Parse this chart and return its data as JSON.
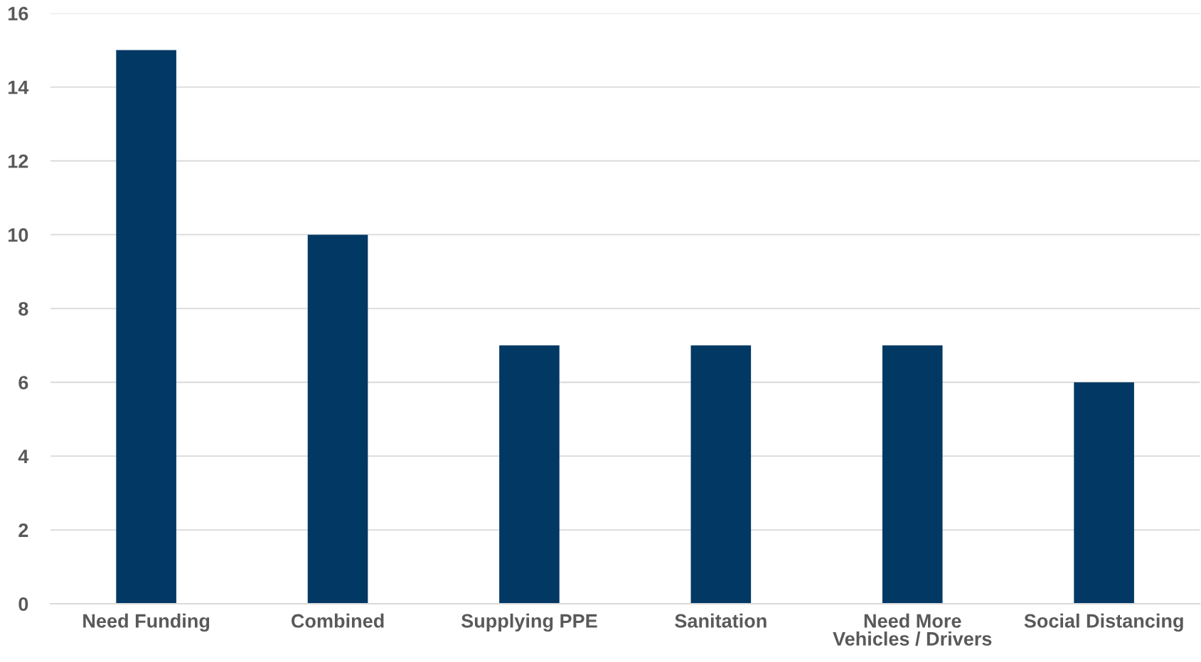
{
  "chart_data": {
    "type": "bar",
    "categories": [
      "Need Funding",
      "Combined",
      "Supplying PPE",
      "Sanitation",
      "Need More\nVehicles / Drivers",
      "Social Distancing"
    ],
    "values": [
      15,
      10,
      7,
      7,
      7,
      6
    ],
    "color": "#023864",
    "ylim": [
      0,
      16
    ],
    "yticks": [
      0,
      2,
      4,
      6,
      8,
      10,
      12,
      14,
      16
    ],
    "grid": "y",
    "legend": false
  }
}
